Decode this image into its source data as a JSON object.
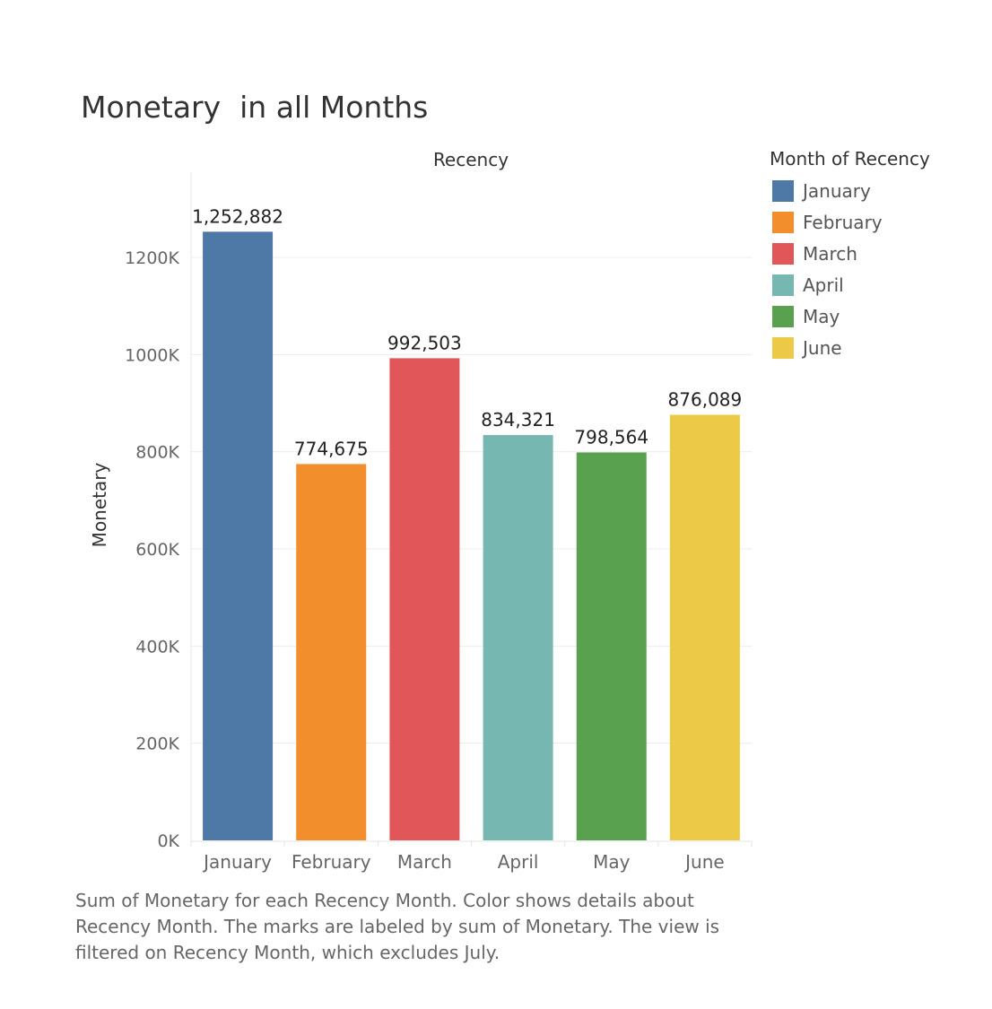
{
  "chart_data": {
    "type": "bar",
    "title": "Monetary  in all Months",
    "column_header": "Recency",
    "ylabel": "Monetary",
    "categories": [
      "January",
      "February",
      "March",
      "April",
      "May",
      "June"
    ],
    "values": [
      1252882,
      774675,
      992503,
      834321,
      798564,
      876089
    ],
    "value_labels": [
      "1,252,882",
      "774,675",
      "992,503",
      "834,321",
      "798,564",
      "876,089"
    ],
    "colors": [
      "#4e79a7",
      "#f28e2b",
      "#e15759",
      "#76b7b2",
      "#59a14f",
      "#edc948"
    ],
    "ylim": [
      0,
      1400000
    ],
    "yticks": [
      0,
      200000,
      400000,
      600000,
      800000,
      1000000,
      1200000
    ],
    "ytick_labels": [
      "0K",
      "200K",
      "400K",
      "600K",
      "800K",
      "1000K",
      "1200K"
    ],
    "grid": true,
    "legend": {
      "title": "Month of Recency",
      "position": "right",
      "items": [
        "January",
        "February",
        "March",
        "April",
        "May",
        "June"
      ]
    }
  },
  "caption": "Sum of Monetary for each Recency Month.  Color shows details about\nRecency Month.  The marks are labeled by sum of Monetary. The view is\nfiltered on Recency Month, which excludes July."
}
